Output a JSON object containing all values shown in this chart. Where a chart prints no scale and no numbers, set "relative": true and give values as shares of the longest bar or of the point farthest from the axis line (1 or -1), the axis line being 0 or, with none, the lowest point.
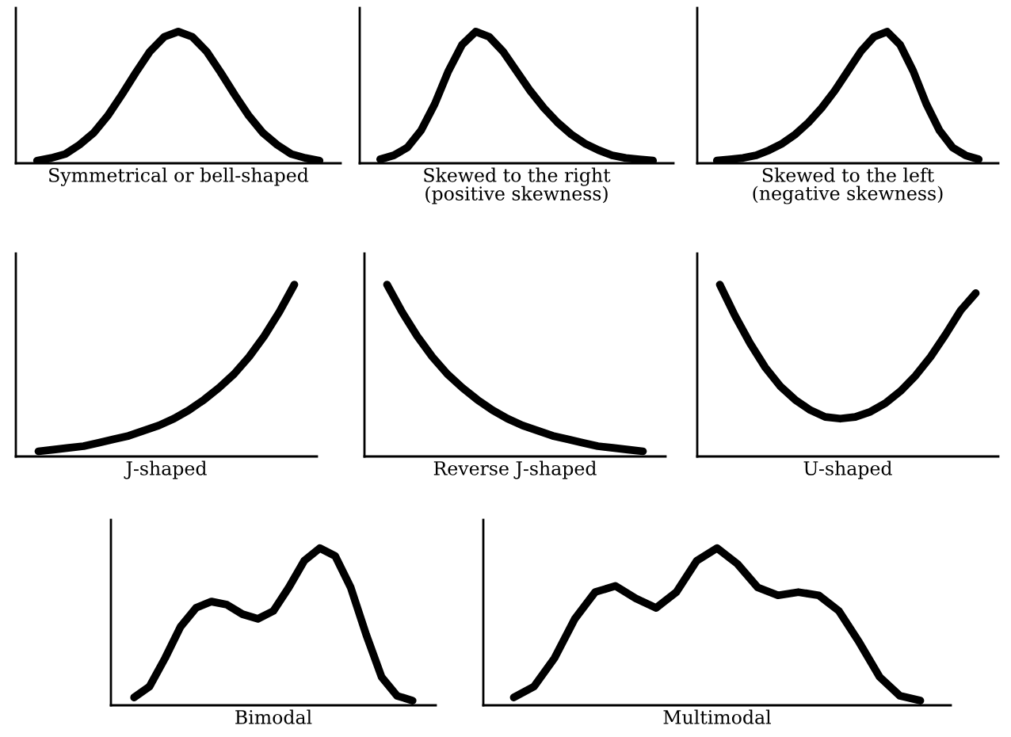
{
  "chart_data": [
    {
      "type": "line",
      "relative": true,
      "xlabel": "Symmetrical or bell-shaped",
      "categories": [
        null,
        null,
        null,
        null,
        null,
        null,
        null,
        null,
        null,
        null,
        null,
        null,
        null,
        null,
        null,
        null,
        null,
        null,
        null,
        null,
        null
      ],
      "series": [
        {
          "color": "#000000",
          "values": [
            0.02,
            0.04,
            0.07,
            0.14,
            0.23,
            0.36,
            0.52,
            0.69,
            0.85,
            0.96,
            1.0,
            0.96,
            0.85,
            0.69,
            0.52,
            0.36,
            0.23,
            0.14,
            0.07,
            0.04,
            0.02
          ]
        }
      ]
    },
    {
      "type": "line",
      "relative": true,
      "xlabel": "Skewed to the right\n(positive skewness)",
      "categories": [
        null,
        null,
        null,
        null,
        null,
        null,
        null,
        null,
        null,
        null,
        null,
        null,
        null,
        null,
        null,
        null,
        null,
        null,
        null,
        null,
        null
      ],
      "series": [
        {
          "color": "#000000",
          "values": [
            0.03,
            0.06,
            0.12,
            0.25,
            0.45,
            0.7,
            0.9,
            1.0,
            0.96,
            0.85,
            0.7,
            0.55,
            0.42,
            0.31,
            0.22,
            0.15,
            0.1,
            0.06,
            0.04,
            0.03,
            0.02
          ]
        }
      ]
    },
    {
      "type": "line",
      "relative": true,
      "xlabel": "Skewed to the left\n(negative skewness)",
      "categories": [
        null,
        null,
        null,
        null,
        null,
        null,
        null,
        null,
        null,
        null,
        null,
        null,
        null,
        null,
        null,
        null,
        null,
        null,
        null,
        null,
        null
      ],
      "series": [
        {
          "color": "#000000",
          "values": [
            0.02,
            0.03,
            0.04,
            0.06,
            0.1,
            0.15,
            0.22,
            0.31,
            0.42,
            0.55,
            0.7,
            0.85,
            0.96,
            1.0,
            0.9,
            0.7,
            0.45,
            0.25,
            0.12,
            0.06,
            0.03
          ]
        }
      ]
    },
    {
      "type": "line",
      "relative": true,
      "xlabel": "J-shaped",
      "categories": [
        null,
        null,
        null,
        null,
        null,
        null,
        null,
        null,
        null,
        null,
        null,
        null,
        null,
        null,
        null,
        null,
        null,
        null
      ],
      "series": [
        {
          "color": "#000000",
          "values": [
            0.03,
            0.04,
            0.05,
            0.06,
            0.08,
            0.1,
            0.12,
            0.15,
            0.18,
            0.22,
            0.27,
            0.33,
            0.4,
            0.48,
            0.58,
            0.7,
            0.84,
            1.0
          ]
        }
      ]
    },
    {
      "type": "line",
      "relative": true,
      "xlabel": "Reverse J-shaped",
      "categories": [
        null,
        null,
        null,
        null,
        null,
        null,
        null,
        null,
        null,
        null,
        null,
        null,
        null,
        null,
        null,
        null,
        null,
        null
      ],
      "series": [
        {
          "color": "#000000",
          "values": [
            1.0,
            0.84,
            0.7,
            0.58,
            0.48,
            0.4,
            0.33,
            0.27,
            0.22,
            0.18,
            0.15,
            0.12,
            0.1,
            0.08,
            0.06,
            0.05,
            0.04,
            0.03
          ]
        }
      ]
    },
    {
      "type": "line",
      "relative": true,
      "xlabel": "U-shaped",
      "categories": [
        null,
        null,
        null,
        null,
        null,
        null,
        null,
        null,
        null,
        null,
        null,
        null,
        null,
        null,
        null,
        null,
        null,
        null
      ],
      "series": [
        {
          "color": "#000000",
          "values": [
            1.0,
            0.82,
            0.66,
            0.52,
            0.41,
            0.33,
            0.27,
            0.23,
            0.22,
            0.23,
            0.26,
            0.31,
            0.38,
            0.47,
            0.58,
            0.71,
            0.85,
            0.95
          ]
        }
      ]
    },
    {
      "type": "line",
      "relative": true,
      "xlabel": "Bimodal",
      "categories": [
        null,
        null,
        null,
        null,
        null,
        null,
        null,
        null,
        null,
        null,
        null,
        null,
        null,
        null,
        null,
        null,
        null,
        null,
        null
      ],
      "series": [
        {
          "color": "#000000",
          "values": [
            0.05,
            0.12,
            0.3,
            0.5,
            0.62,
            0.66,
            0.64,
            0.58,
            0.55,
            0.6,
            0.75,
            0.92,
            1.0,
            0.95,
            0.75,
            0.45,
            0.18,
            0.06,
            0.03
          ]
        }
      ]
    },
    {
      "type": "line",
      "relative": true,
      "xlabel": "Multimodal",
      "categories": [
        null,
        null,
        null,
        null,
        null,
        null,
        null,
        null,
        null,
        null,
        null,
        null,
        null,
        null,
        null,
        null,
        null,
        null,
        null,
        null,
        null
      ],
      "series": [
        {
          "color": "#000000",
          "values": [
            0.05,
            0.12,
            0.3,
            0.55,
            0.72,
            0.76,
            0.68,
            0.62,
            0.72,
            0.92,
            1.0,
            0.9,
            0.75,
            0.7,
            0.72,
            0.7,
            0.6,
            0.4,
            0.18,
            0.06,
            0.03
          ]
        }
      ]
    }
  ]
}
